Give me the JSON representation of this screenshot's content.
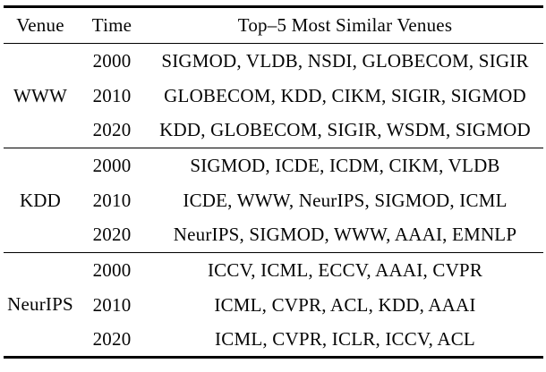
{
  "table": {
    "headers": [
      "Venue",
      "Time",
      "Top–5 Most Similar Venues"
    ],
    "groups": [
      {
        "venue": "WWW",
        "rows": [
          {
            "time": "2000",
            "venues": "SIGMOD, VLDB, NSDI, GLOBECOM, SIGIR"
          },
          {
            "time": "2010",
            "venues": "GLOBECOM, KDD, CIKM, SIGIR, SIGMOD"
          },
          {
            "time": "2020",
            "venues": "KDD, GLOBECOM, SIGIR, WSDM, SIGMOD"
          }
        ]
      },
      {
        "venue": "KDD",
        "rows": [
          {
            "time": "2000",
            "venues": "SIGMOD, ICDE, ICDM, CIKM, VLDB"
          },
          {
            "time": "2010",
            "venues": "ICDE, WWW, NeurIPS, SIGMOD, ICML"
          },
          {
            "time": "2020",
            "venues": "NeurIPS, SIGMOD, WWW, AAAI, EMNLP"
          }
        ]
      },
      {
        "venue": "NeurIPS",
        "rows": [
          {
            "time": "2000",
            "venues": "ICCV, ICML, ECCV, AAAI, CVPR"
          },
          {
            "time": "2010",
            "venues": "ICML, CVPR, ACL, KDD, AAAI"
          },
          {
            "time": "2020",
            "venues": "ICML, CVPR, ICLR, ICCV, ACL"
          }
        ]
      }
    ],
    "rule_color": "#000000",
    "text_color": "#050505"
  }
}
